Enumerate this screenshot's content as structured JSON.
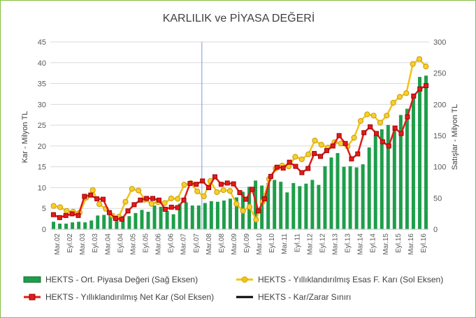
{
  "chart_data": {
    "type": "bar+line",
    "title": "KARLILIK ve PİYASA DEĞERİ",
    "ylabel_left": "Kar - Milyon TL",
    "ylabel_right": "Satışlar - Milyon TL",
    "ylim_left": [
      0,
      45
    ],
    "yticks_left": [
      "0",
      "5",
      "10",
      "15",
      "20",
      "25",
      "30",
      "35",
      "40",
      "45"
    ],
    "ylim_right": [
      0,
      300
    ],
    "yticks_right": [
      "0",
      "50",
      "100",
      "150",
      "200",
      "250",
      "300"
    ],
    "grid": true,
    "legend_position": "bottom",
    "vertical_marker_after_label": "Eyl.07",
    "x_labels": [
      "Mar.02",
      "Eyl.02",
      "Mar.03",
      "Eyl.03",
      "Mar.04",
      "Eyl.04",
      "Mar.05",
      "Eyl.05",
      "Mar.06",
      "Eyl.06",
      "Mar.07",
      "Eyl.07",
      "Mar.08",
      "Eyl.08",
      "Mar.09",
      "Eyl.09",
      "Mar.10",
      "Eyl.10",
      "Mar.11",
      "Eyl.11",
      "Mar.12",
      "Eyl.12",
      "Mar.13",
      "Eyl.13",
      "Mar.14",
      "Eyl.14",
      "Mar.15",
      "Eyl.15",
      "Mar.16",
      "Eyl.16"
    ],
    "series": [
      {
        "name": "HEKTS - Ort. Piyasa Değeri (Sağ Eksen)",
        "type": "bar",
        "axis": "right",
        "color": "#1e9e4a",
        "values": [
          12,
          9,
          9,
          11,
          12,
          11,
          14,
          22,
          23,
          24,
          20,
          21,
          21,
          26,
          31,
          28,
          38,
          36,
          29,
          24,
          41,
          43,
          38,
          38,
          42,
          45,
          44,
          46,
          49,
          51,
          60,
          68,
          78,
          70,
          74,
          79,
          76,
          59,
          74,
          69,
          73,
          79,
          71,
          101,
          115,
          122,
          100,
          101,
          99,
          104,
          131,
          151,
          160,
          167,
          160,
          183,
          193,
          212,
          244,
          246
        ]
      },
      {
        "name": "HEKTS - Yıllıklandırılmış Esas F. Karı (Sol Eksen)",
        "type": "line",
        "axis": "left",
        "color": "#f2c318",
        "values": [
          5.6,
          5.3,
          4.4,
          4.2,
          4.0,
          7.6,
          9.4,
          6.0,
          4.9,
          3.3,
          3.0,
          6.6,
          9.7,
          9.3,
          7.1,
          6.1,
          6.5,
          6.3,
          7.4,
          7.3,
          10.7,
          11.1,
          9.1,
          7.9,
          11.6,
          8.9,
          9.4,
          9.2,
          6.1,
          4.4,
          5.4,
          2.3,
          6.6,
          12.1,
          14.6,
          15.3,
          15.1,
          17.4,
          16.8,
          18.0,
          21.3,
          20.3,
          19.6,
          20.9,
          20.6,
          19.9,
          22.0,
          26.0,
          27.6,
          27.3,
          25.6,
          27.3,
          30.4,
          31.8,
          32.7,
          39.7,
          40.9,
          39.1
        ]
      },
      {
        "name": "HEKTS - Yıllıklandırılmış Net Kar (Sol Eksen)",
        "type": "line",
        "axis": "left",
        "color": "#e21b1b",
        "values": [
          3.5,
          2.8,
          3.3,
          3.7,
          3.3,
          7.9,
          8.2,
          7.3,
          7.2,
          4.0,
          2.6,
          2.4,
          4.4,
          5.9,
          7.0,
          7.4,
          7.4,
          7.0,
          4.8,
          5.3,
          5.2,
          7.0,
          11.0,
          10.8,
          11.6,
          10.0,
          12.6,
          10.8,
          11.1,
          10.9,
          8.8,
          7.2,
          9.6,
          4.4,
          7.3,
          12.7,
          14.9,
          14.7,
          16.1,
          15.1,
          13.6,
          14.6,
          18.2,
          17.5,
          18.9,
          20.0,
          22.5,
          20.6,
          16.9,
          18.1,
          23.2,
          24.6,
          23.0,
          21.0,
          20.0,
          24.3,
          23.0,
          27.0,
          32.0,
          33.7,
          34.5
        ]
      },
      {
        "name": "HEKTS - Kar/Zarar Sınırı",
        "type": "line",
        "axis": "left",
        "color": "#000000",
        "values": []
      }
    ]
  }
}
